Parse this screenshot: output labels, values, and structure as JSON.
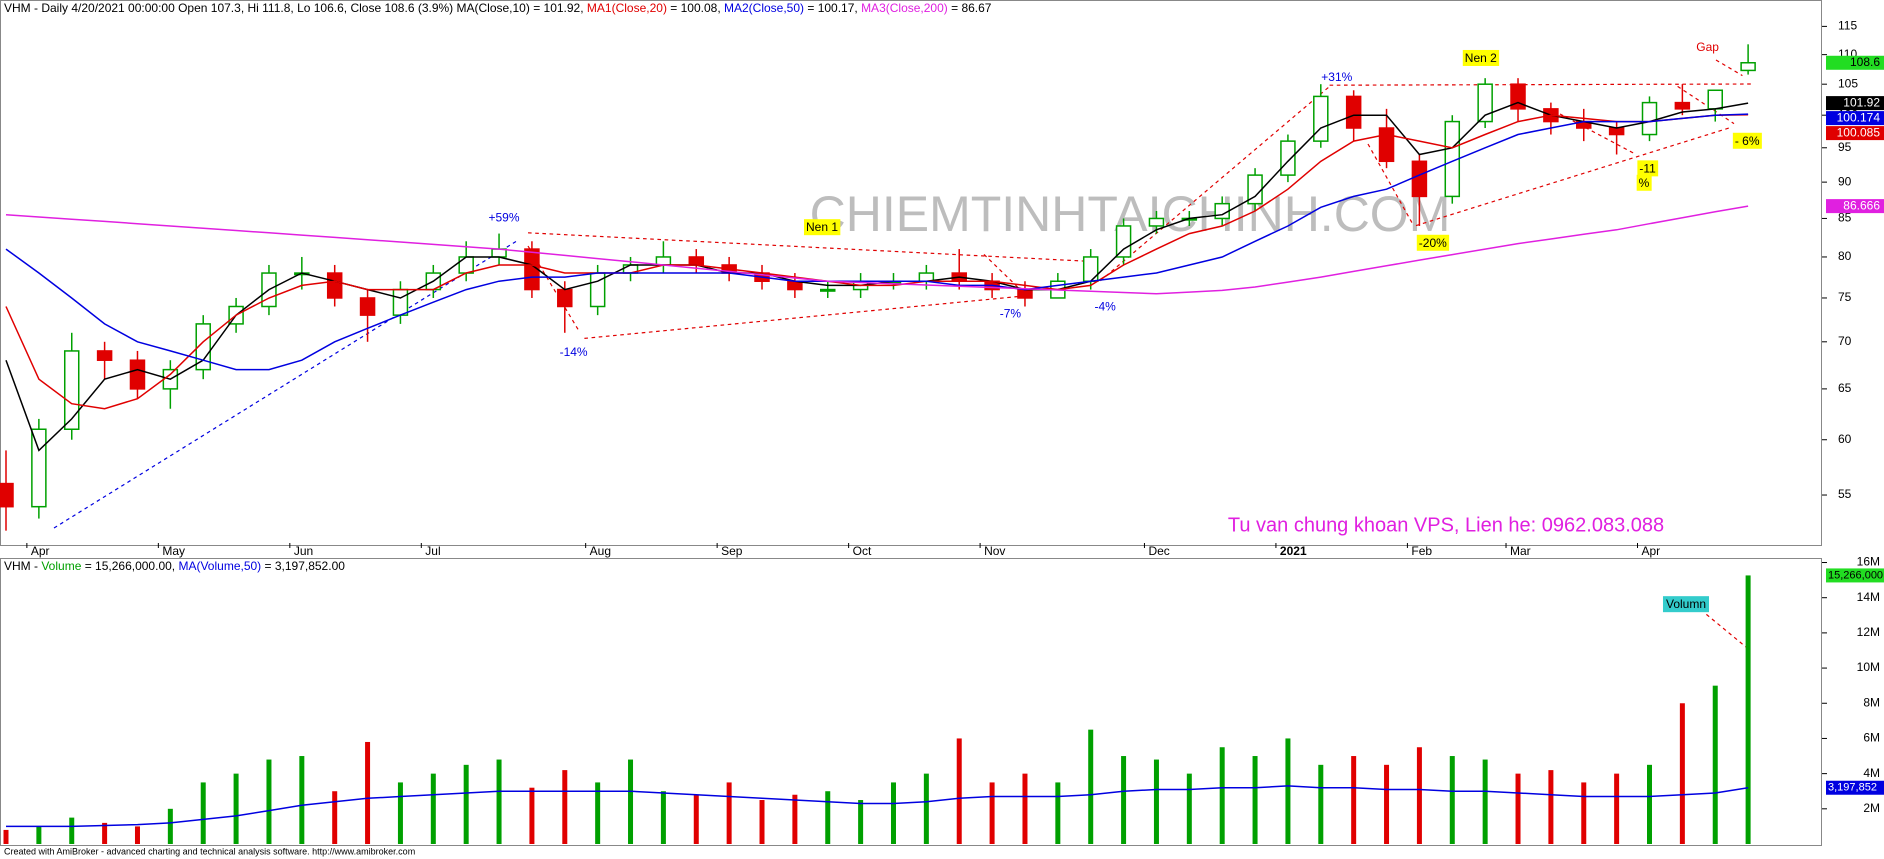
{
  "chart_data": [
    {
      "type": "candlestick",
      "header": [
        {
          "text": "VHM - Daily 4/20/2021 00:00:00 Open 107.3, Hi 111.8, Lo 106.6, Close 108.6 (3.9%) MA(Close,10) = 101.92, ",
          "color": "#000000"
        },
        {
          "text": "MA1(Close,20)",
          "color": "#e00000"
        },
        {
          "text": " = 100.08, ",
          "color": "#000000"
        },
        {
          "text": "MA2(Close,50)",
          "color": "#0000e0"
        },
        {
          "text": " = 100.17, ",
          "color": "#000000"
        },
        {
          "text": "MA3(Close,200)",
          "color": "#e020e0"
        },
        {
          "text": " = 86.67",
          "color": "#000000"
        }
      ],
      "categories": [
        null,
        "Apr",
        null,
        null,
        null,
        "May",
        null,
        null,
        null,
        "Jun",
        null,
        null,
        null,
        "Jul",
        null,
        null,
        null,
        null,
        "Aug",
        null,
        null,
        null,
        "Sep",
        null,
        null,
        null,
        "Oct",
        null,
        null,
        null,
        "Nov",
        null,
        null,
        null,
        null,
        "Dec",
        null,
        null,
        null,
        "2021",
        null,
        null,
        null,
        "Feb",
        null,
        null,
        "Mar",
        null,
        null,
        null,
        "Apr",
        null,
        null,
        null
      ],
      "open": [
        56,
        54,
        61,
        69,
        68,
        65,
        67,
        72,
        74,
        78,
        78,
        75,
        73,
        76,
        78,
        80,
        81,
        76,
        74,
        78,
        79,
        80,
        79,
        78,
        77,
        76,
        76,
        77,
        77,
        78,
        77,
        76,
        75,
        77,
        80,
        84,
        85,
        85,
        87,
        91,
        96,
        103,
        98,
        93,
        88,
        99,
        105,
        101,
        99,
        98,
        97,
        102,
        101,
        107.3
      ],
      "high": [
        59,
        62,
        71,
        70,
        69,
        68,
        73,
        75,
        79,
        80,
        79,
        76,
        77,
        79,
        82,
        83,
        82,
        77,
        79,
        80,
        82,
        81,
        80,
        79,
        78,
        77,
        78,
        78,
        79,
        81,
        78,
        77,
        78,
        81,
        85,
        86,
        86,
        88,
        92,
        97,
        105,
        104,
        101,
        94,
        100,
        106,
        106,
        102,
        101,
        99,
        103,
        105,
        104,
        111.8
      ],
      "low": [
        52,
        53,
        60,
        66,
        64,
        63,
        66,
        71,
        73,
        76,
        74,
        70,
        72,
        75,
        77,
        79,
        75,
        71,
        73,
        77,
        78,
        78,
        77,
        76,
        75,
        75,
        75,
        76,
        76,
        76,
        75,
        74,
        75,
        76,
        79,
        83,
        84,
        84,
        86,
        90,
        95,
        96,
        92,
        84,
        87,
        98,
        99,
        97,
        96,
        94,
        96,
        100,
        99,
        106.6
      ],
      "close": [
        54,
        61,
        69,
        68,
        65,
        67,
        72,
        74,
        78,
        78,
        75,
        73,
        76,
        78,
        80,
        81,
        76,
        74,
        78,
        79,
        80,
        79,
        78,
        77,
        76,
        76,
        77,
        77,
        78,
        77,
        76,
        75,
        77,
        80,
        84,
        85,
        85,
        87,
        91,
        96,
        103,
        98,
        93,
        88,
        99,
        105,
        101,
        99,
        98,
        97,
        102,
        101,
        104,
        108.6
      ],
      "up_color": "#00a000",
      "down_color": "#e00000",
      "lines": [
        {
          "color": "#000000",
          "values": [
            68,
            59,
            62,
            66,
            67,
            66,
            68,
            73,
            76,
            78,
            77,
            76,
            75,
            77,
            80,
            80,
            79,
            76,
            77,
            79,
            79,
            79,
            78,
            78,
            77,
            76.5,
            76.5,
            77,
            77,
            77.5,
            77,
            76,
            76,
            77,
            81,
            83.5,
            85,
            85.5,
            88,
            93,
            98,
            100,
            100,
            94,
            95,
            100,
            102,
            100,
            99,
            98,
            99,
            100.5,
            101,
            101.92
          ]
        },
        {
          "color": "#e00000",
          "values": [
            74,
            66,
            63.5,
            63,
            64,
            66.5,
            70,
            73,
            75,
            76.5,
            77,
            76,
            76,
            76,
            78,
            79,
            79,
            78,
            78,
            78,
            79,
            79,
            78.5,
            78,
            77.5,
            77,
            76.5,
            76.5,
            77,
            77,
            77,
            76.5,
            76,
            76.5,
            79,
            81,
            83,
            84,
            86,
            89,
            93,
            96,
            97,
            96,
            95,
            97,
            99,
            100,
            99.5,
            99,
            99,
            99.5,
            100,
            100.08
          ]
        },
        {
          "color": "#0000e0",
          "values": [
            81,
            78,
            75,
            72,
            70,
            69,
            68,
            67,
            67,
            68,
            70,
            71.5,
            73,
            74.5,
            76,
            77,
            77.5,
            77.5,
            78,
            78,
            78,
            78,
            78,
            77.5,
            77,
            77,
            77,
            77,
            77,
            76.5,
            76.5,
            76,
            76.5,
            77,
            77.5,
            78,
            79,
            80,
            82,
            84,
            86.5,
            88,
            89,
            91,
            93,
            95,
            97,
            98,
            99,
            99,
            99,
            99.5,
            100,
            100.17
          ]
        },
        {
          "color": "#e020e0",
          "values": [
            85.5,
            85.2,
            84.9,
            84.6,
            84.3,
            84.0,
            83.7,
            83.4,
            83.1,
            82.8,
            82.5,
            82.2,
            81.9,
            81.6,
            81.3,
            81.0,
            80.6,
            80.2,
            79.8,
            79.4,
            79,
            78.6,
            78.2,
            77.8,
            77.4,
            77,
            76.85,
            76.7,
            76.55,
            76.4,
            76.25,
            76.1,
            75.95,
            75.8,
            75.65,
            75.5,
            75.7,
            75.9,
            76.3,
            76.9,
            77.5,
            78.2,
            78.9,
            79.6,
            80.3,
            81,
            81.7,
            82.3,
            82.9,
            83.5,
            84.3,
            85.1,
            85.9,
            86.67
          ]
        }
      ],
      "log_scale": true,
      "ylim": [
        51,
        119.5
      ],
      "yticks": [
        55,
        60,
        65,
        70,
        75,
        80,
        85,
        90,
        95,
        100,
        105,
        110,
        115
      ],
      "price_tags": [
        {
          "value": 108.6,
          "color": "#22dd22"
        },
        {
          "value": 101.92,
          "color": "#000000"
        },
        {
          "value": 100.174,
          "color": "#0000e0"
        },
        {
          "value": 100.085,
          "color": "#e00000"
        },
        {
          "value": 86.666,
          "color": "#e020e0"
        }
      ],
      "annotations": [
        "+59%",
        "-14%",
        "Nen 1",
        "-7%",
        "-4%",
        "+31%",
        "Nen 2",
        "-20%",
        "Gap",
        "-11",
        "%",
        "- 6%"
      ],
      "watermark": "CHIEMTINHTAICHINH.COM",
      "contact": "Tu van chung khoan VPS, Lien he: 0962.083.088"
    },
    {
      "type": "bar",
      "header": [
        {
          "text": "VHM - ",
          "color": "#000000"
        },
        {
          "text": "Volume",
          "color": "#00a000"
        },
        {
          "text": " = 15,266,000.00, ",
          "color": "#000000"
        },
        {
          "text": "MA(Volume,50)",
          "color": "#0000e0"
        },
        {
          "text": " = 3,197,852.00",
          "color": "#000000"
        }
      ],
      "values": [
        800000,
        1000000,
        1500000,
        1200000,
        1000000,
        2000000,
        3500000,
        4000000,
        4800000,
        5000000,
        3000000,
        5800000,
        3500000,
        4000000,
        4500000,
        4800000,
        3200000,
        4200000,
        3500000,
        4800000,
        3000000,
        2800000,
        3500000,
        2500000,
        2800000,
        3000000,
        2500000,
        3500000,
        4000000,
        6000000,
        3500000,
        4000000,
        3500000,
        6500000,
        5000000,
        4800000,
        4000000,
        5500000,
        5000000,
        6000000,
        4500000,
        5000000,
        4500000,
        5500000,
        5000000,
        4800000,
        4000000,
        4200000,
        3500000,
        4000000,
        4500000,
        8000000,
        9000000,
        15266000
      ],
      "ma": {
        "color": "#0000e0",
        "values": [
          1000000,
          1000000,
          1000000,
          1050000,
          1100000,
          1200000,
          1400000,
          1600000,
          1900000,
          2200000,
          2400000,
          2600000,
          2700000,
          2800000,
          2900000,
          3000000,
          3000000,
          3000000,
          3000000,
          3000000,
          2900000,
          2800000,
          2700000,
          2600000,
          2500000,
          2400000,
          2300000,
          2300000,
          2400000,
          2600000,
          2700000,
          2700000,
          2700000,
          2800000,
          3000000,
          3100000,
          3100000,
          3200000,
          3200000,
          3300000,
          3200000,
          3200000,
          3100000,
          3100000,
          3000000,
          3000000,
          2900000,
          2800000,
          2700000,
          2700000,
          2700000,
          2800000,
          2900000,
          3197852
        ]
      },
      "ylim": [
        0,
        16200000
      ],
      "yticks": [
        {
          "value": 2000000,
          "label": "2M"
        },
        {
          "value": 4000000,
          "label": "4M"
        },
        {
          "value": 6000000,
          "label": "6M"
        },
        {
          "value": 8000000,
          "label": "8M"
        },
        {
          "value": 10000000,
          "label": "10M"
        },
        {
          "value": 12000000,
          "label": "12M"
        },
        {
          "value": 14000000,
          "label": "14M"
        },
        {
          "value": 16000000,
          "label": "16M"
        }
      ],
      "tags": [
        {
          "value": 15266000,
          "label": "15,266,000",
          "color": "#22dd22"
        },
        {
          "value": 3197852,
          "label": "3,197,852",
          "color": "#0000e0"
        }
      ],
      "annotation": "Volumn"
    }
  ],
  "footer": "Created with AmiBroker - advanced charting and technical analysis software. http://www.amibroker.com"
}
